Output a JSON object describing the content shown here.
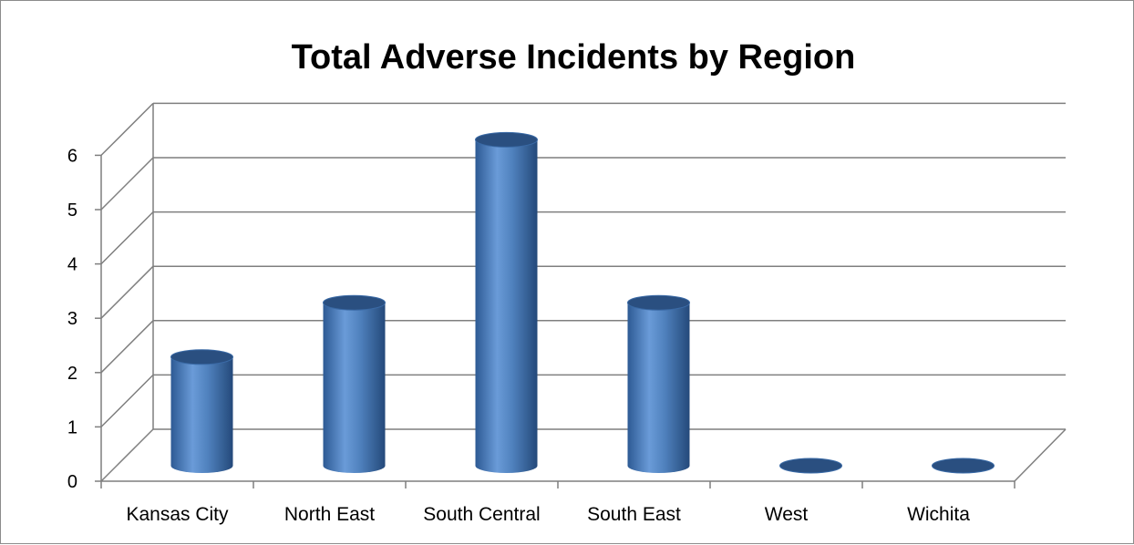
{
  "chart_data": {
    "type": "bar",
    "style": "3d-cylinder",
    "title": "Total Adverse Incidents by Region",
    "xlabel": "",
    "ylabel": "",
    "categories": [
      "Kansas City",
      "North East",
      "South Central",
      "South East",
      "West",
      "Wichita"
    ],
    "series": [
      {
        "values": [
          2,
          3,
          6,
          3,
          0,
          0
        ]
      }
    ],
    "yticks": [
      "0",
      "1",
      "2",
      "3",
      "4",
      "5",
      "6"
    ],
    "ylim": [
      0,
      6
    ],
    "grid": true,
    "legend": "none",
    "colors": {
      "bar": "#4f81bd",
      "bar_dark": "#2a4f80",
      "bar_light": "#7ea7da",
      "grid": "#7f7f7f"
    }
  }
}
